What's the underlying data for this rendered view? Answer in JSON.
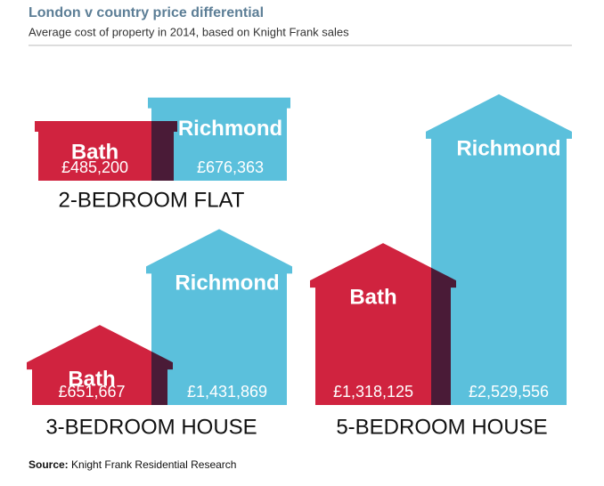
{
  "title": "London v country price differential",
  "subtitle": "Average cost of property in 2014, based on Knight Frank sales",
  "source_label": "Source:",
  "source": "Knight Frank Residential Research",
  "chart_data": [
    {
      "type": "flat",
      "title": "2-BEDROOM FLAT",
      "categories": [
        "Bath",
        "Richmond"
      ],
      "values": [
        485200,
        676363
      ],
      "value_labels": [
        "£485,200",
        "£676,363"
      ],
      "colors": [
        "#d0233f",
        "#5bc0dc"
      ]
    },
    {
      "type": "house",
      "title": "3-BEDROOM HOUSE",
      "categories": [
        "Bath",
        "Richmond"
      ],
      "values": [
        651667,
        1431869
      ],
      "value_labels": [
        "£651,667",
        "£1,431,869"
      ],
      "colors": [
        "#d0233f",
        "#5bc0dc"
      ]
    },
    {
      "type": "house",
      "title": "5-BEDROOM HOUSE",
      "categories": [
        "Bath",
        "Richmond"
      ],
      "values": [
        1318125,
        2529556
      ],
      "value_labels": [
        "£1,318,125",
        "£2,529,556"
      ],
      "colors": [
        "#d0233f",
        "#5bc0dc"
      ]
    }
  ]
}
